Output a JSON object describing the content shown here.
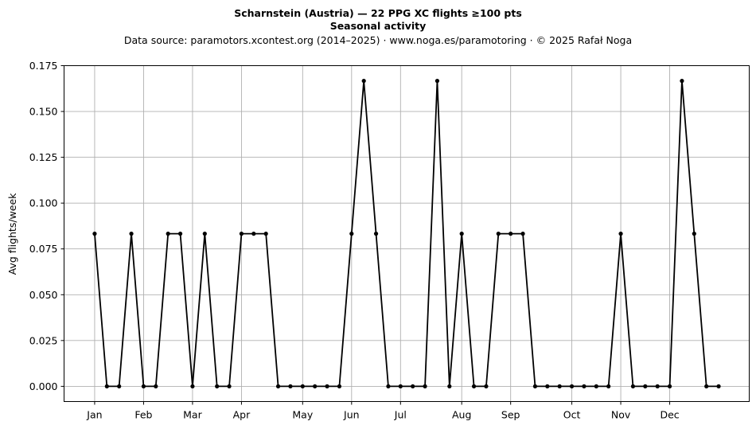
{
  "chart_data": {
    "type": "line",
    "title_line1": "Scharnstein (Austria)  —  22 PPG XC flights ≥100 pts",
    "title_line2": "Seasonal activity",
    "subtitle": "Data source: paramotors.xcontest.org (2014–2025)  ·  www.noga.es/paramotoring  ·  © 2025 Rafał Noga",
    "xlabel": "",
    "ylabel": "Avg flights/week",
    "x_unit": "week of year",
    "xlim": [
      -1.5,
      54.5
    ],
    "ylim": [
      -0.0083,
      0.175
    ],
    "yticks": [
      {
        "value": 0.0,
        "label": "0.000"
      },
      {
        "value": 0.025,
        "label": "0.025"
      },
      {
        "value": 0.05,
        "label": "0.050"
      },
      {
        "value": 0.075,
        "label": "0.075"
      },
      {
        "value": 0.1,
        "label": "0.100"
      },
      {
        "value": 0.125,
        "label": "0.125"
      },
      {
        "value": 0.15,
        "label": "0.150"
      },
      {
        "value": 0.175,
        "label": "0.175"
      }
    ],
    "xticks": [
      {
        "value": 1,
        "label": "Jan"
      },
      {
        "value": 5,
        "label": "Feb"
      },
      {
        "value": 9,
        "label": "Mar"
      },
      {
        "value": 13,
        "label": "Apr"
      },
      {
        "value": 18,
        "label": "May"
      },
      {
        "value": 22,
        "label": "Jun"
      },
      {
        "value": 26,
        "label": "Jul"
      },
      {
        "value": 31,
        "label": "Aug"
      },
      {
        "value": 35,
        "label": "Sep"
      },
      {
        "value": 40,
        "label": "Oct"
      },
      {
        "value": 44,
        "label": "Nov"
      },
      {
        "value": 48,
        "label": "Dec"
      }
    ],
    "grid": true,
    "line_color": "#000000",
    "grid_color": "#b0b0b0",
    "series": [
      {
        "x": [
          1,
          2,
          3,
          4,
          5,
          6,
          7,
          8,
          9,
          10,
          11,
          12,
          13,
          14,
          15,
          16,
          17,
          18,
          19,
          20,
          21,
          22,
          23,
          24,
          25,
          26,
          27,
          28,
          29,
          30,
          31,
          32,
          33,
          34,
          35,
          36,
          37,
          38,
          39,
          40,
          41,
          42,
          43,
          44,
          45,
          46,
          47,
          48,
          49,
          50,
          51,
          52
        ],
        "values": [
          0.0833,
          0,
          0,
          0.0833,
          0,
          0,
          0.0833,
          0.0833,
          0,
          0.0833,
          0,
          0,
          0.0833,
          0.0833,
          0.0833,
          0,
          0,
          0,
          0,
          0,
          0,
          0.0833,
          0.1667,
          0.0833,
          0,
          0,
          0,
          0,
          0.1667,
          0,
          0.0833,
          0,
          0,
          0.0833,
          0.0833,
          0.0833,
          0,
          0,
          0,
          0,
          0,
          0,
          0,
          0.0833,
          0,
          0,
          0,
          0,
          0.1667,
          0.0833,
          0,
          0
        ]
      }
    ]
  }
}
